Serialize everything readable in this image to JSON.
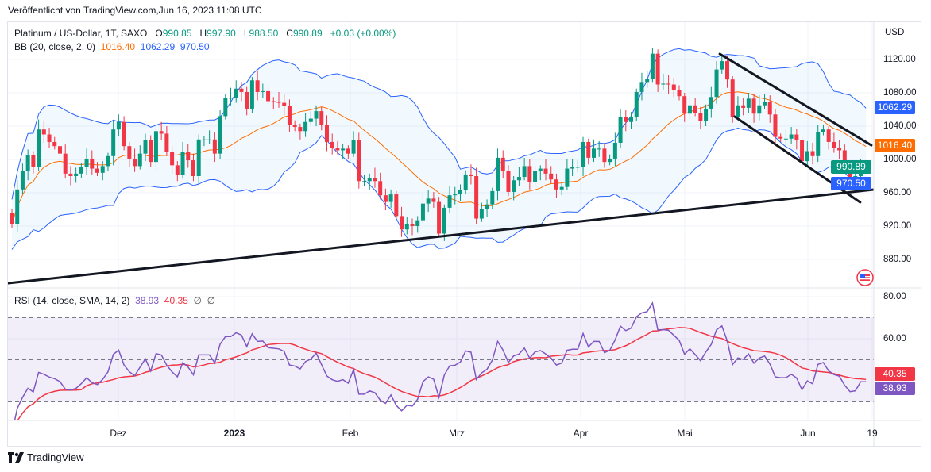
{
  "header": {
    "published": "Veröffentlicht von TradingView.com,Jun 16, 2023 11:08 UTC"
  },
  "legend": {
    "symbol": "Platinum / US-Dollar, 1T, SAXO",
    "o_label": "O",
    "o": "990.85",
    "h_label": "H",
    "h": "997.90",
    "l_label": "L",
    "l": "988.50",
    "c_label": "C",
    "c": "990.89",
    "change": "+0.03 (+0.00%)"
  },
  "bb": {
    "label": "BB (20, close, 2, 0)",
    "basis": "1016.40",
    "upper": "1062.29",
    "lower": "970.50"
  },
  "rsi": {
    "label": "RSI (14, close, SMA, 14, 2)",
    "value": "38.93",
    "sma": "40.35",
    "na1": "∅",
    "na2": "∅"
  },
  "price_axis": {
    "currency": "USD",
    "ticks": [
      "1120.00",
      "1080.00",
      "1040.00",
      "1000.00",
      "960.00",
      "920.00",
      "880.00"
    ]
  },
  "rsi_axis": {
    "ticks": [
      "80.00",
      "60.00"
    ]
  },
  "time_axis": {
    "ticks": [
      "Dez",
      "2023",
      "Feb",
      "Mrz",
      "Apr",
      "Mai",
      "Jun",
      "19"
    ]
  },
  "footer": {
    "brand": "TradingView"
  },
  "colors": {
    "up": "#089981",
    "down": "#f23645",
    "bb_basis": "#ff6d00",
    "bb_bands": "#2962ff",
    "bb_fill": "#2196f3",
    "rsi": "#7e57c2",
    "rsi_sma": "#f23645",
    "rsi_band": "#7e57c2",
    "trendline": "#131722"
  },
  "chart_data": {
    "type": "candlestick",
    "title": "Platinum / US-Dollar, 1T, SAXO",
    "interval": "1T",
    "ylim": [
      860,
      1140
    ],
    "x_ticks": [
      "Dez",
      "2023",
      "Feb",
      "Mrz",
      "Apr",
      "Mai",
      "Jun",
      "19"
    ],
    "first_open": 936,
    "last_candle": {
      "open": 990.85,
      "high": 997.9,
      "low": 988.5,
      "close": 990.89
    },
    "closes": [
      922,
      964,
      986,
      1005,
      991,
      1036,
      1030,
      1021,
      1016,
      1007,
      983,
      980,
      983,
      991,
      1001,
      989,
      984,
      992,
      1004,
      1036,
      1045,
      1016,
      1001,
      992,
      1007,
      1023,
      997,
      1034,
      1031,
      1009,
      993,
      981,
      1009,
      999,
      980,
      1024,
      1024,
      1024,
      1007,
      1052,
      1074,
      1074,
      1085,
      1081,
      1061,
      1095,
      1081,
      1082,
      1070,
      1069,
      1068,
      1064,
      1041,
      1039,
      1034,
      1045,
      1049,
      1058,
      1041,
      1021,
      1014,
      1011,
      1013,
      1007,
      1023,
      974,
      974,
      978,
      974,
      957,
      949,
      958,
      932,
      916,
      922,
      920,
      927,
      947,
      953,
      949,
      911,
      942,
      957,
      958,
      963,
      982,
      980,
      929,
      940,
      946,
      962,
      1002,
      986,
      961,
      975,
      979,
      992,
      973,
      986,
      989,
      983,
      976,
      964,
      967,
      989,
      991,
      991,
      1021,
      1002,
      1013,
      1013,
      997,
      1001,
      1020,
      1051,
      1045,
      1051,
      1081,
      1093,
      1097,
      1127,
      1090,
      1091,
      1090,
      1083,
      1076,
      1055,
      1065,
      1056,
      1046,
      1061,
      1075,
      1108,
      1118,
      1096,
      1051,
      1065,
      1062,
      1073,
      1055,
      1065,
      1069,
      1054,
      1027,
      1025,
      1025,
      1030,
      1023,
      998,
      1010,
      1004,
      1033,
      1036,
      1021,
      1014,
      1011,
      993,
      979,
      980,
      990.85,
      990.89
    ],
    "indicators": {
      "bollinger": {
        "length": 20,
        "source": "close",
        "mult": 2,
        "offset": 0,
        "last": {
          "basis": 1016.4,
          "upper": 1062.29,
          "lower": 970.5
        }
      },
      "rsi": {
        "length": 14,
        "source": "close",
        "ma": "SMA",
        "ma_length": 14,
        "levels": [
          70,
          50,
          30
        ],
        "ylim": [
          0,
          100
        ],
        "last": {
          "rsi": 38.93,
          "sma": 40.35
        }
      }
    },
    "trendlines": [
      {
        "name": "support",
        "from": {
          "bar": -0.7,
          "price": 851.4
        },
        "to": {
          "bar": 161.5,
          "price": 963.8
        }
      },
      {
        "name": "channel-upper",
        "from": {
          "bar": 132.6,
          "price": 1126.7
        },
        "to": {
          "bar": 161,
          "price": 1017
        }
      },
      {
        "name": "channel-lower",
        "from": {
          "bar": 135.4,
          "price": 1051.4
        },
        "to": {
          "bar": 158.9,
          "price": 948.6
        }
      }
    ]
  }
}
